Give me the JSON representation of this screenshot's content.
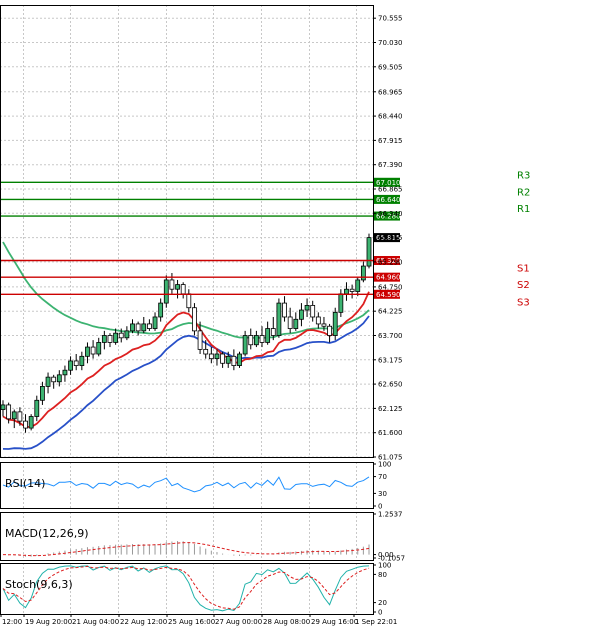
{
  "chart_data": {
    "type": "candlestick",
    "price_axis": {
      "ticks": [
        "70.555",
        "70.030",
        "69.505",
        "68.965",
        "68.440",
        "67.915",
        "67.390",
        "66.865",
        "66.340",
        "65.815",
        "65.290",
        "64.750",
        "64.225",
        "63.700",
        "63.175",
        "62.650",
        "62.125",
        "61.600",
        "61.075"
      ],
      "range": [
        61.075,
        70.84
      ]
    },
    "levels": [
      {
        "name": "R3",
        "value": 67.01,
        "label": "67.010",
        "color": "#008000"
      },
      {
        "name": "R2",
        "value": 66.64,
        "label": "66.640",
        "color": "#008000"
      },
      {
        "name": "R1",
        "value": 66.28,
        "label": "66.280",
        "color": "#008000"
      },
      {
        "name": "S1",
        "value": 65.32,
        "label": "65.320",
        "color": "#cc0000"
      },
      {
        "name": "S2",
        "value": 64.96,
        "label": "64.960",
        "color": "#cc0000"
      },
      {
        "name": "S3",
        "value": 64.59,
        "label": "64.590",
        "color": "#cc0000"
      }
    ],
    "current_price": {
      "value": 65.815,
      "label": "65.815"
    },
    "time_labels": [
      "12:00",
      "19 Aug 20:00",
      "21 Aug 04:00",
      "22 Aug 12:00",
      "25 Aug 16:00",
      "27 Aug 00:00",
      "28 Aug 08:00",
      "29 Aug 16:00",
      "1 Sep 22:01"
    ],
    "candles": [
      [
        62.1,
        62.3,
        61.95,
        62.2
      ],
      [
        62.2,
        62.25,
        61.8,
        61.9
      ],
      [
        61.9,
        62.1,
        61.7,
        62.05
      ],
      [
        62.05,
        62.15,
        61.75,
        61.85
      ],
      [
        61.85,
        62.0,
        61.6,
        61.7
      ],
      [
        61.7,
        62.0,
        61.65,
        61.95
      ],
      [
        61.95,
        62.4,
        61.85,
        62.3
      ],
      [
        62.3,
        62.7,
        62.2,
        62.6
      ],
      [
        62.6,
        62.9,
        62.45,
        62.8
      ],
      [
        62.8,
        62.85,
        62.55,
        62.7
      ],
      [
        62.7,
        62.95,
        62.6,
        62.85
      ],
      [
        62.85,
        63.05,
        62.7,
        62.95
      ],
      [
        62.95,
        63.25,
        62.85,
        63.15
      ],
      [
        63.15,
        63.3,
        62.95,
        63.05
      ],
      [
        63.05,
        63.35,
        62.95,
        63.25
      ],
      [
        63.25,
        63.55,
        63.1,
        63.45
      ],
      [
        63.45,
        63.6,
        63.2,
        63.3
      ],
      [
        63.3,
        63.65,
        63.25,
        63.55
      ],
      [
        63.55,
        63.8,
        63.4,
        63.7
      ],
      [
        63.7,
        63.75,
        63.45,
        63.55
      ],
      [
        63.55,
        63.85,
        63.5,
        63.75
      ],
      [
        63.75,
        63.85,
        63.55,
        63.65
      ],
      [
        63.65,
        63.9,
        63.6,
        63.8
      ],
      [
        63.8,
        64.05,
        63.75,
        63.95
      ],
      [
        63.95,
        64.0,
        63.7,
        63.8
      ],
      [
        63.8,
        64.1,
        63.75,
        63.95
      ],
      [
        63.95,
        64.05,
        63.8,
        63.85
      ],
      [
        63.85,
        64.2,
        63.8,
        64.1
      ],
      [
        64.1,
        64.5,
        64.0,
        64.4
      ],
      [
        64.4,
        65.0,
        64.3,
        64.9
      ],
      [
        64.9,
        65.05,
        64.6,
        64.7
      ],
      [
        64.7,
        64.9,
        64.5,
        64.8
      ],
      [
        64.8,
        64.85,
        64.5,
        64.6
      ],
      [
        64.6,
        64.7,
        64.2,
        64.3
      ],
      [
        64.3,
        64.4,
        63.7,
        63.8
      ],
      [
        63.8,
        64.0,
        63.3,
        63.4
      ],
      [
        63.4,
        63.6,
        63.2,
        63.3
      ],
      [
        63.3,
        63.45,
        63.1,
        63.2
      ],
      [
        63.2,
        63.4,
        63.05,
        63.3
      ],
      [
        63.3,
        63.35,
        63.0,
        63.1
      ],
      [
        63.1,
        63.35,
        63.0,
        63.25
      ],
      [
        63.25,
        63.4,
        62.95,
        63.05
      ],
      [
        63.05,
        63.35,
        63.0,
        63.3
      ],
      [
        63.3,
        63.8,
        63.25,
        63.7
      ],
      [
        63.7,
        63.85,
        63.4,
        63.5
      ],
      [
        63.5,
        63.8,
        63.45,
        63.7
      ],
      [
        63.7,
        63.9,
        63.45,
        63.55
      ],
      [
        63.55,
        64.0,
        63.5,
        63.85
      ],
      [
        63.85,
        64.1,
        63.6,
        63.7
      ],
      [
        63.7,
        64.5,
        63.65,
        64.4
      ],
      [
        64.4,
        64.55,
        64.0,
        64.1
      ],
      [
        64.1,
        64.3,
        63.75,
        63.85
      ],
      [
        63.85,
        64.2,
        63.8,
        64.05
      ],
      [
        64.05,
        64.4,
        63.9,
        64.25
      ],
      [
        64.25,
        64.5,
        64.1,
        64.35
      ],
      [
        64.35,
        64.45,
        64.0,
        64.1
      ],
      [
        64.1,
        64.2,
        63.85,
        63.95
      ],
      [
        63.95,
        64.1,
        63.8,
        63.9
      ],
      [
        63.9,
        63.95,
        63.55,
        63.7
      ],
      [
        63.7,
        64.3,
        63.6,
        64.2
      ],
      [
        64.2,
        64.7,
        64.1,
        64.6
      ],
      [
        64.6,
        64.85,
        64.45,
        64.7
      ],
      [
        64.7,
        64.8,
        64.5,
        64.65
      ],
      [
        64.65,
        64.95,
        64.55,
        64.9
      ],
      [
        64.9,
        65.3,
        64.85,
        65.2
      ],
      [
        65.2,
        65.9,
        65.15,
        65.815
      ]
    ],
    "indicators": [
      {
        "name": "RSI(14)",
        "ticks": [
          "100",
          "70",
          "30",
          "0"
        ],
        "range": [
          0,
          100
        ]
      },
      {
        "name": "MACD(12,26,9)",
        "ticks": [
          "1.2537",
          "0.00",
          "-0.1057"
        ],
        "range": [
          -0.1057,
          1.2537
        ]
      },
      {
        "name": "Stoch(9,6,3)",
        "ticks": [
          "100",
          "80",
          "20",
          "0"
        ],
        "range": [
          0,
          100
        ]
      }
    ]
  }
}
